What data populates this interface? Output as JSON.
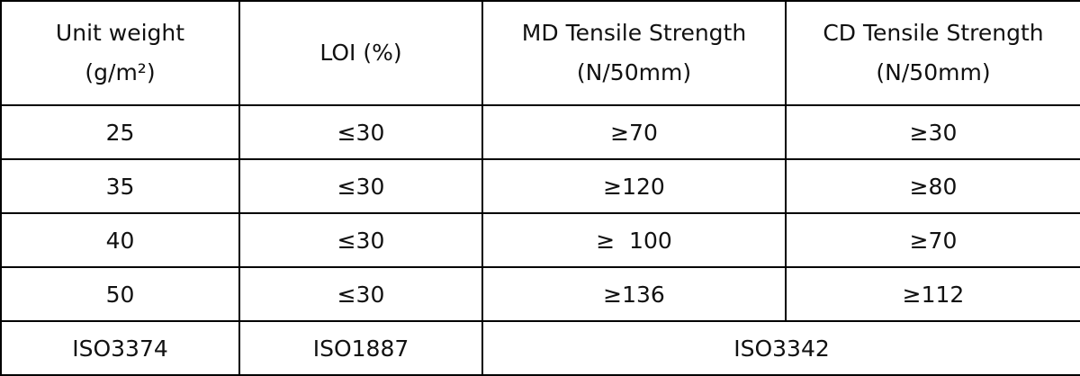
{
  "table": {
    "header": [
      [
        "Unit weight",
        "(g/m²)"
      ],
      [
        "LOI (%)"
      ],
      [
        "MD Tensile Strength",
        "(N/50mm)"
      ],
      [
        "CD Tensile Strength",
        "(N/50mm)"
      ]
    ],
    "rows": [
      [
        "25",
        "≤30",
        "≥70",
        "≥30"
      ],
      [
        "35",
        "≤30",
        "≥120",
        "≥80"
      ],
      [
        "40",
        "≤30",
        "≥  100",
        "≥70"
      ],
      [
        "50",
        "≤30",
        "≥136",
        "≥112"
      ]
    ],
    "footer": [
      "ISO3374",
      "ISO1887",
      "ISO3342"
    ]
  }
}
